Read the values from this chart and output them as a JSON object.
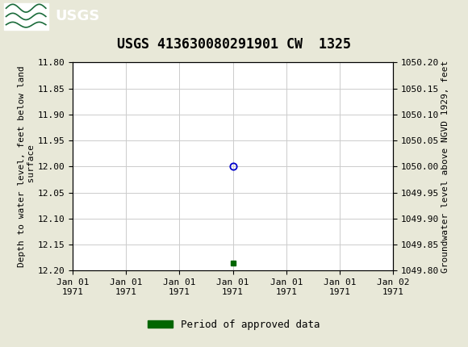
{
  "title": "USGS 413630080291901 CW  1325",
  "left_ylabel": "Depth to water level, feet below land\n surface",
  "right_ylabel": "Groundwater level above NGVD 1929, feet",
  "ylim_left_top": 11.8,
  "ylim_left_bottom": 12.2,
  "ylim_right_top": 1050.2,
  "ylim_right_bottom": 1049.8,
  "yticks_left": [
    11.8,
    11.85,
    11.9,
    11.95,
    12.0,
    12.05,
    12.1,
    12.15,
    12.2
  ],
  "yticks_right": [
    1050.2,
    1050.15,
    1050.1,
    1050.05,
    1050.0,
    1049.95,
    1049.9,
    1049.85,
    1049.8
  ],
  "data_point_x": 12,
  "data_point_y": 12.0,
  "small_square_x": 12,
  "small_square_y": 12.185,
  "circle_color": "#0000cc",
  "square_color": "#006600",
  "header_color": "#1a6b3a",
  "background_color": "#e8e8d8",
  "plot_bg_color": "#ffffff",
  "grid_color": "#cccccc",
  "legend_label": "Period of approved data",
  "legend_color": "#006600",
  "title_fontsize": 12,
  "tick_fontsize": 8,
  "axis_label_fontsize": 8,
  "x_ticks": [
    0,
    4,
    8,
    12,
    16,
    20,
    24
  ],
  "x_tick_labels": [
    "Jan 01\n1971",
    "Jan 01\n1971",
    "Jan 01\n1971",
    "Jan 01\n1971",
    "Jan 01\n1971",
    "Jan 01\n1971",
    "Jan 02\n1971"
  ],
  "xlim": [
    0,
    24
  ]
}
